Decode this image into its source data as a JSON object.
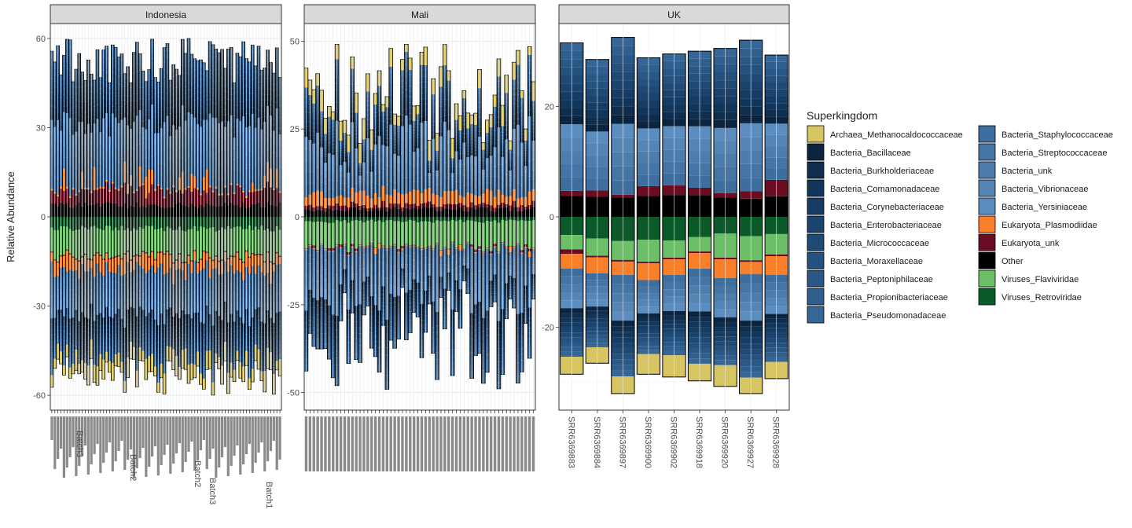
{
  "chart_data": {
    "type": "bar",
    "stacking": "diverging",
    "ylabel": "Relative Abundance",
    "grid": true,
    "legend_position": "right",
    "legend": {
      "title": "Superkingdom",
      "entries": [
        {
          "name": "Archaea_Methanocaldococcaceae",
          "color": "#d7c462"
        },
        {
          "name": "Bacteria_Bacillaceae",
          "color": "#0b2540"
        },
        {
          "name": "Bacteria_Burkholderiaceae",
          "color": "#0f2d4d"
        },
        {
          "name": "Bacteria_Comamonadaceae",
          "color": "#12355a"
        },
        {
          "name": "Bacteria_Corynebacteriaceae",
          "color": "#163c64"
        },
        {
          "name": "Bacteria_Enterobacteriaceae",
          "color": "#1a436d"
        },
        {
          "name": "Bacteria_Micrococcaceae",
          "color": "#1f4a76"
        },
        {
          "name": "Bacteria_Moraxellaceae",
          "color": "#24517e"
        },
        {
          "name": "Bacteria_Peptoniphilaceae",
          "color": "#2a5886"
        },
        {
          "name": "Bacteria_Propionibacteriaceae",
          "color": "#305f8e"
        },
        {
          "name": "Bacteria_Pseudomonadaceae",
          "color": "#366696"
        },
        {
          "name": "Bacteria_Staphylococcaceae",
          "color": "#3d6e9e"
        },
        {
          "name": "Bacteria_Streptococcaceae",
          "color": "#4575a6"
        },
        {
          "name": "Bacteria_unk",
          "color": "#4d7dad"
        },
        {
          "name": "Bacteria_Vibrionaceae",
          "color": "#5585b5"
        },
        {
          "name": "Bacteria_Yersiniaceae",
          "color": "#5c8dc0"
        },
        {
          "name": "Eukaryota_Plasmodiidae",
          "color": "#fa7f2a"
        },
        {
          "name": "Eukaryota_unk",
          "color": "#6a0d22"
        },
        {
          "name": "Other",
          "color": "#000000"
        },
        {
          "name": "Viruses_Flaviviridae",
          "color": "#6cbf66"
        },
        {
          "name": "Viruses_Retroviridae",
          "color": "#0c5a2a"
        }
      ]
    },
    "panels": [
      {
        "title": "Indonesia",
        "ylim": [
          -65,
          65
        ],
        "y_ticks": [
          60,
          30,
          0,
          -30,
          -60
        ],
        "n_samples": 76,
        "pos_range": [
          45,
          60
        ],
        "neg_range": [
          -60,
          -47
        ],
        "x_tick_labels_legible": false,
        "x_tick_labels": [
          "Batch3",
          "Batch2",
          "Batch2",
          "Batch3",
          "Batch1"
        ]
      },
      {
        "title": "Mali",
        "ylim": [
          -55,
          55
        ],
        "y_ticks": [
          50,
          25,
          0,
          -25,
          -50
        ],
        "n_samples": 60,
        "pos_range": [
          20,
          50
        ],
        "neg_range": [
          -50,
          -18
        ],
        "x_tick_labels_legible": false,
        "x_tick_labels": []
      },
      {
        "title": "UK",
        "ylim": [
          -35,
          35
        ],
        "y_ticks": [
          20,
          0,
          -20
        ],
        "categories": [
          "SRR6369883",
          "SRR6369884",
          "SRR6369897",
          "SRR6369900",
          "SRR6369902",
          "SRR6369918",
          "SRR6369920",
          "SRR6369927",
          "SRR6369928"
        ],
        "positive_totals": [
          31.5,
          28.5,
          32.5,
          28.8,
          29.5,
          30.0,
          30.5,
          32.0,
          29.3
        ],
        "negative_totals": [
          -28.5,
          -26.5,
          -32.0,
          -28.5,
          -29.0,
          -29.7,
          -30.7,
          -32.0,
          -29.3
        ]
      }
    ]
  }
}
